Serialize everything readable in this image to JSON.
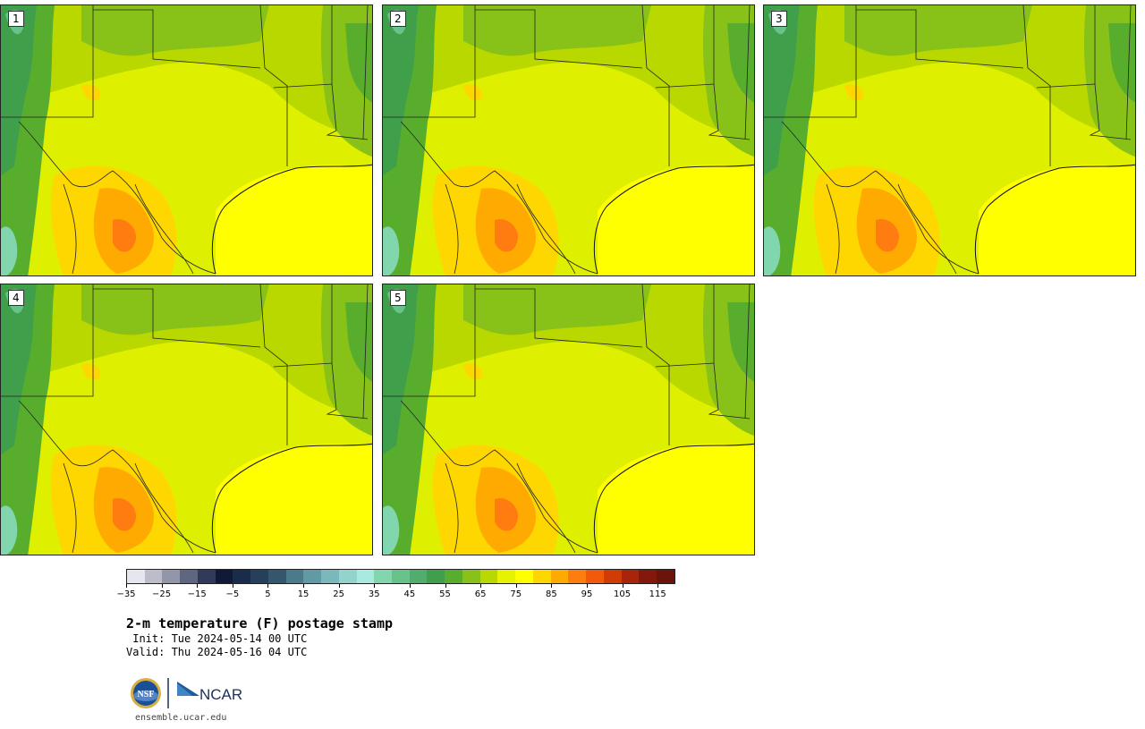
{
  "panels": [
    {
      "label": "1"
    },
    {
      "label": "2"
    },
    {
      "label": "3"
    },
    {
      "label": "4"
    },
    {
      "label": "5"
    }
  ],
  "colorbar": {
    "colors": [
      "#e6e6ee",
      "#bcbcca",
      "#9296a8",
      "#5e6680",
      "#323a5c",
      "#101a36",
      "#1a2c4c",
      "#263f5c",
      "#35576e",
      "#4b7a8a",
      "#5f9aa5",
      "#7ab8bb",
      "#92d3cc",
      "#a8eadf",
      "#82d6ae",
      "#67c28c",
      "#50ad6e",
      "#3f9f4a",
      "#58ad2c",
      "#88c218",
      "#b8d800",
      "#e6f200",
      "#ffff00",
      "#ffd700",
      "#ffaa00",
      "#ff7c10",
      "#f05a0a",
      "#d03c06",
      "#a8240a",
      "#84180c",
      "#6a140a"
    ],
    "tick_labels": [
      "−35",
      "−25",
      "−15",
      "−5",
      "5",
      "15",
      "25",
      "35",
      "45",
      "55",
      "65",
      "75",
      "85",
      "95",
      "105",
      "115"
    ]
  },
  "title": "2-m temperature (F) postage stamp",
  "init": " Init: Tue 2024-05-14 00 UTC",
  "valid": "Valid: Thu 2024-05-16 04 UTC",
  "logos": {
    "nsf": "NSF",
    "ncar": "NCAR"
  },
  "footer": "ensemble.ucar.edu"
}
